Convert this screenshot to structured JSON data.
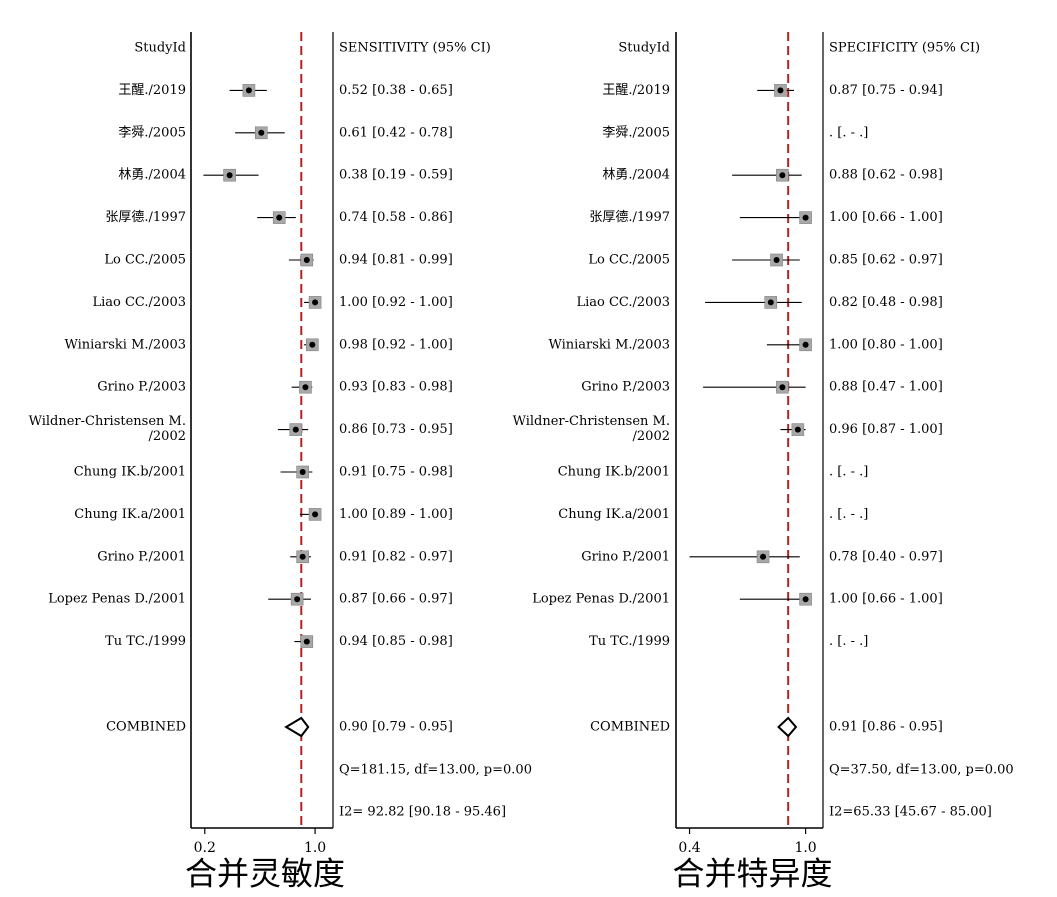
{
  "chart_data": [
    {
      "type": "forest",
      "title": "合并灵敏度",
      "study_header": "StudyId",
      "stat_header": "SENSITIVITY (95% CI)",
      "xlim": [
        0.1,
        1.13
      ],
      "ticks": [
        "0.2",
        "1.0"
      ],
      "tick_values": [
        0.2,
        1.0
      ],
      "reference_line": 0.9,
      "studies": [
        {
          "name": "王醒./2019",
          "est": 0.52,
          "lo": 0.38,
          "hi": 0.65,
          "label": "0.52 [0.38 - 0.65]"
        },
        {
          "name": "李舜./2005",
          "est": 0.61,
          "lo": 0.42,
          "hi": 0.78,
          "label": "0.61 [0.42 - 0.78]"
        },
        {
          "name": "林勇./2004",
          "est": 0.38,
          "lo": 0.19,
          "hi": 0.59,
          "label": "0.38 [0.19 - 0.59]"
        },
        {
          "name": "张厚德./1997",
          "est": 0.74,
          "lo": 0.58,
          "hi": 0.86,
          "label": "0.74 [0.58 - 0.86]"
        },
        {
          "name": "Lo CC./2005",
          "est": 0.94,
          "lo": 0.81,
          "hi": 0.99,
          "label": "0.94 [0.81 - 0.99]"
        },
        {
          "name": "Liao CC./2003",
          "est": 1.0,
          "lo": 0.92,
          "hi": 1.0,
          "label": "1.00 [0.92 - 1.00]"
        },
        {
          "name": "Winiarski M./2003",
          "est": 0.98,
          "lo": 0.92,
          "hi": 1.0,
          "label": "0.98 [0.92 - 1.00]"
        },
        {
          "name": "Grino P./2003",
          "est": 0.93,
          "lo": 0.83,
          "hi": 0.98,
          "label": "0.93 [0.83 - 0.98]"
        },
        {
          "name": "Wildner-Christensen M.",
          "name2": "/2002",
          "est": 0.86,
          "lo": 0.73,
          "hi": 0.95,
          "label": "0.86 [0.73 - 0.95]"
        },
        {
          "name": "Chung IK.b/2001",
          "est": 0.91,
          "lo": 0.75,
          "hi": 0.98,
          "label": "0.91 [0.75 - 0.98]"
        },
        {
          "name": "Chung IK.a/2001",
          "est": 1.0,
          "lo": 0.89,
          "hi": 1.0,
          "label": "1.00 [0.89 - 1.00]"
        },
        {
          "name": "Grino P./2001",
          "est": 0.91,
          "lo": 0.82,
          "hi": 0.97,
          "label": "0.91 [0.82 - 0.97]"
        },
        {
          "name": "Lopez Penas D./2001",
          "est": 0.87,
          "lo": 0.66,
          "hi": 0.97,
          "label": "0.87 [0.66 - 0.97]"
        },
        {
          "name": "Tu TC./1999",
          "est": 0.94,
          "lo": 0.85,
          "hi": 0.98,
          "label": "0.94 [0.85 - 0.98]"
        }
      ],
      "combined": {
        "name": "COMBINED",
        "est": 0.9,
        "lo": 0.79,
        "hi": 0.95,
        "label": "0.90 [0.79 - 0.95]"
      },
      "heterogeneity": "Q=181.15, df=13.00, p=0.00",
      "i2": "I2= 92.82 [90.18 - 95.46]"
    },
    {
      "type": "forest",
      "title": "合并特异度",
      "study_header": "StudyId",
      "stat_header": "SPECIFICITY (95% CI)",
      "xlim": [
        0.33,
        1.09
      ],
      "ticks": [
        "0.4",
        "1.0"
      ],
      "tick_values": [
        0.4,
        1.0
      ],
      "reference_line": 0.91,
      "studies": [
        {
          "name": "王醒./2019",
          "est": 0.87,
          "lo": 0.75,
          "hi": 0.94,
          "label": "0.87 [0.75 - 0.94]"
        },
        {
          "name": "李舜./2005",
          "est": null,
          "lo": null,
          "hi": null,
          "label": ". [. - .]"
        },
        {
          "name": "林勇./2004",
          "est": 0.88,
          "lo": 0.62,
          "hi": 0.98,
          "label": "0.88 [0.62 - 0.98]"
        },
        {
          "name": "张厚德./1997",
          "est": 1.0,
          "lo": 0.66,
          "hi": 1.0,
          "label": "1.00 [0.66 - 1.00]"
        },
        {
          "name": "Lo CC./2005",
          "est": 0.85,
          "lo": 0.62,
          "hi": 0.97,
          "label": "0.85 [0.62 - 0.97]"
        },
        {
          "name": "Liao CC./2003",
          "est": 0.82,
          "lo": 0.48,
          "hi": 0.98,
          "label": "0.82 [0.48 - 0.98]"
        },
        {
          "name": "Winiarski M./2003",
          "est": 1.0,
          "lo": 0.8,
          "hi": 1.0,
          "label": "1.00 [0.80 - 1.00]"
        },
        {
          "name": "Grino P./2003",
          "est": 0.88,
          "lo": 0.47,
          "hi": 1.0,
          "label": "0.88 [0.47 - 1.00]"
        },
        {
          "name": "Wildner-Christensen M.",
          "name2": "/2002",
          "est": 0.96,
          "lo": 0.87,
          "hi": 1.0,
          "label": "0.96 [0.87 - 1.00]"
        },
        {
          "name": "Chung IK.b/2001",
          "est": null,
          "lo": null,
          "hi": null,
          "label": ". [. - .]"
        },
        {
          "name": "Chung IK.a/2001",
          "est": null,
          "lo": null,
          "hi": null,
          "label": ". [. - .]"
        },
        {
          "name": "Grino P./2001",
          "est": 0.78,
          "lo": 0.4,
          "hi": 0.97,
          "label": "0.78 [0.40 - 0.97]"
        },
        {
          "name": "Lopez Penas D./2001",
          "est": 1.0,
          "lo": 0.66,
          "hi": 1.0,
          "label": "1.00 [0.66 - 1.00]"
        },
        {
          "name": "Tu TC./1999",
          "est": null,
          "lo": null,
          "hi": null,
          "label": ". [. - .]"
        }
      ],
      "combined": {
        "name": "COMBINED",
        "est": 0.91,
        "lo": 0.86,
        "hi": 0.95,
        "label": "0.91 [0.86 - 0.95]"
      },
      "heterogeneity": "Q=37.50, df=13.00, p=0.00",
      "i2": "I2=65.33 [45.67 - 85.00]"
    }
  ],
  "colors": {
    "axis": "#000000",
    "reference_line": "#b22222",
    "box_fill": "#a8a8a8",
    "ci_line": "#000000",
    "text": "#000000"
  }
}
